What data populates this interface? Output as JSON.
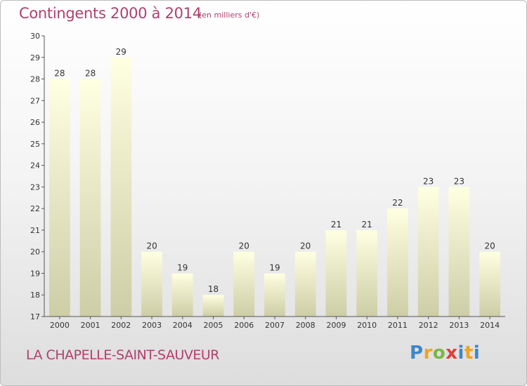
{
  "title": "Contingents 2000 à 2014",
  "subtitle": "(en milliers d'€)",
  "commune": "LA CHAPELLE-SAINT-SAUVEUR",
  "logo": {
    "p": "P",
    "r": "r",
    "o": "o",
    "x": "x",
    "i": "i",
    "t": "t",
    "i2": "i"
  },
  "chart_data": {
    "type": "bar",
    "categories": [
      "2000",
      "2001",
      "2002",
      "2003",
      "2004",
      "2005",
      "2006",
      "2007",
      "2008",
      "2009",
      "2010",
      "2011",
      "2012",
      "2013",
      "2014"
    ],
    "values": [
      28,
      28,
      29,
      20,
      19,
      18,
      20,
      19,
      20,
      21,
      21,
      22,
      23,
      23,
      20
    ],
    "ylim": [
      17,
      30
    ],
    "yticks": [
      17,
      18,
      19,
      20,
      21,
      22,
      23,
      24,
      25,
      26,
      27,
      28,
      29,
      30
    ],
    "grid": false,
    "data_labels": true,
    "colors": {
      "bar_top": "#ffffe2",
      "bar_bottom": "#cdcda6",
      "axis": "#555555",
      "label": "#333333"
    }
  }
}
